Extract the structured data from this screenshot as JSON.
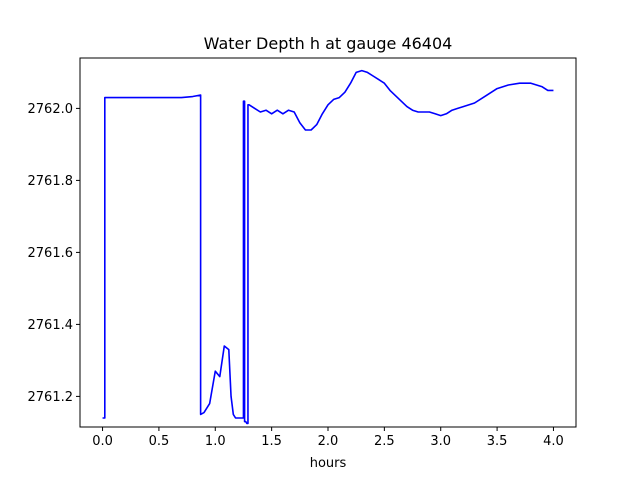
{
  "chart_data": {
    "type": "line",
    "title": "Water Depth h at gauge 46404",
    "xlabel": "hours",
    "ylabel": "",
    "xlim": [
      -0.2,
      4.2
    ],
    "ylim": [
      2761.115,
      2762.14
    ],
    "xticks": [
      0.0,
      0.5,
      1.0,
      1.5,
      2.0,
      2.5,
      3.0,
      3.5,
      4.0
    ],
    "xtick_labels": [
      "0.0",
      "0.5",
      "1.0",
      "1.5",
      "2.0",
      "2.5",
      "3.0",
      "3.5",
      "4.0"
    ],
    "yticks": [
      2761.2,
      2761.4,
      2761.6,
      2761.8,
      2762.0
    ],
    "ytick_labels": [
      "2761.2",
      "2761.4",
      "2761.6",
      "2761.8",
      "2762.0"
    ],
    "grid": false,
    "series": [
      {
        "color": "#0000ff",
        "x": [
          0.0,
          0.02,
          0.02,
          0.2,
          0.5,
          0.7,
          0.8,
          0.87,
          0.87,
          0.9,
          0.95,
          1.0,
          1.04,
          1.08,
          1.12,
          1.14,
          1.16,
          1.18,
          1.2,
          1.25,
          1.25,
          1.26,
          1.26,
          1.27,
          1.28,
          1.29,
          1.29,
          1.3,
          1.35,
          1.4,
          1.45,
          1.5,
          1.55,
          1.6,
          1.65,
          1.7,
          1.75,
          1.8,
          1.85,
          1.9,
          1.95,
          2.0,
          2.05,
          2.1,
          2.15,
          2.2,
          2.25,
          2.3,
          2.35,
          2.4,
          2.45,
          2.5,
          2.55,
          2.6,
          2.65,
          2.7,
          2.75,
          2.8,
          2.85,
          2.9,
          2.95,
          3.0,
          3.05,
          3.1,
          3.15,
          3.2,
          3.3,
          3.4,
          3.5,
          3.6,
          3.7,
          3.8,
          3.9,
          3.95,
          4.0
        ],
        "y": [
          2761.14,
          2761.14,
          2762.03,
          2762.03,
          2762.03,
          2762.03,
          2762.033,
          2762.037,
          2761.15,
          2761.155,
          2761.18,
          2761.27,
          2761.255,
          2761.34,
          2761.33,
          2761.2,
          2761.15,
          2761.14,
          2761.14,
          2761.14,
          2762.02,
          2762.02,
          2761.13,
          2761.13,
          2761.125,
          2761.125,
          2762.01,
          2762.01,
          2762.0,
          2761.99,
          2761.995,
          2761.985,
          2761.995,
          2761.985,
          2761.995,
          2761.99,
          2761.96,
          2761.94,
          2761.94,
          2761.955,
          2761.985,
          2762.01,
          2762.025,
          2762.03,
          2762.045,
          2762.07,
          2762.1,
          2762.105,
          2762.1,
          2762.09,
          2762.08,
          2762.07,
          2762.05,
          2762.035,
          2762.02,
          2762.005,
          2761.995,
          2761.99,
          2761.99,
          2761.99,
          2761.985,
          2761.98,
          2761.985,
          2761.995,
          2762.0,
          2762.005,
          2762.015,
          2762.035,
          2762.055,
          2762.065,
          2762.07,
          2762.07,
          2762.06,
          2762.05,
          2762.05
        ]
      }
    ]
  }
}
